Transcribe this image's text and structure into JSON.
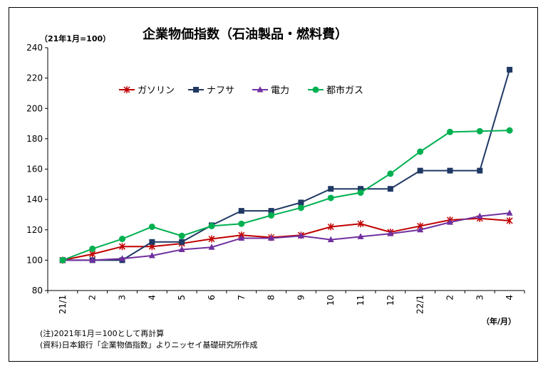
{
  "chart_data": {
    "type": "line",
    "title": "企業物価指数（石油製品・燃料費）",
    "y_unit_label": "（21年1月=100）",
    "x_unit_label": "（年/月）",
    "categories": [
      "21/1",
      "2",
      "3",
      "4",
      "5",
      "6",
      "7",
      "8",
      "9",
      "10",
      "11",
      "12",
      "22/1",
      "2",
      "3",
      "4"
    ],
    "ylim": [
      80,
      240
    ],
    "yticks": [
      80,
      100,
      120,
      140,
      160,
      180,
      200,
      220,
      240
    ],
    "grid": false,
    "legend_placement": "top-left",
    "series": [
      {
        "name": "ガソリン",
        "color": "#c00000",
        "marker": "star",
        "values": [
          100,
          104,
          109,
          109,
          111,
          114,
          116.5,
          115,
          116.5,
          122,
          124,
          118.5,
          122.5,
          126.5,
          127.5,
          126
        ]
      },
      {
        "name": "ナフサ",
        "color": "#1f3864",
        "marker": "square",
        "values": [
          100,
          100,
          100,
          112,
          112,
          123,
          132.5,
          132.5,
          138,
          147,
          147,
          147,
          159,
          159,
          159,
          225.5
        ]
      },
      {
        "name": "電力",
        "color": "#7030a0",
        "marker": "triangle",
        "values": [
          100,
          100,
          101,
          103,
          107,
          108.5,
          114.5,
          114.5,
          116,
          113.5,
          115.5,
          117.5,
          120,
          125,
          129,
          131
        ]
      },
      {
        "name": "都市ガス",
        "color": "#00b050",
        "marker": "circle",
        "values": [
          100,
          107.5,
          114,
          122,
          116,
          122.5,
          124,
          129.5,
          134.5,
          141,
          144.5,
          157,
          171.5,
          184.5,
          185,
          185.5
        ]
      }
    ]
  },
  "notes": [
    "(注)2021年1月＝100として再計算",
    "(資料)日本銀行「企業物価指数」よりニッセイ基礎研究所作成"
  ]
}
